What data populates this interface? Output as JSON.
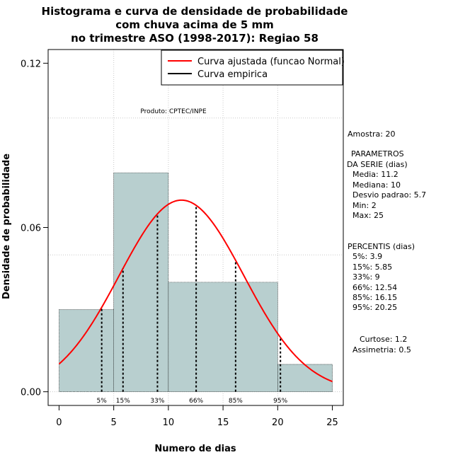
{
  "chart_data": {
    "type": "bar",
    "title_lines": [
      "Histograma e curva de densidade de probabilidade",
      "com chuva acima de 5 mm",
      "no trimestre ASO (1998-2017): Regiao 58"
    ],
    "xlabel": "Numero de dias",
    "ylabel": "Densidade de probabilidade",
    "xlim": [
      -1,
      26
    ],
    "ylim": [
      -0.005,
      0.125
    ],
    "x_ticks": [
      0,
      5,
      10,
      15,
      20,
      25
    ],
    "y_ticks": [
      0.0,
      0.06,
      0.12
    ],
    "y_tick_labels": [
      "0.00",
      "0.06",
      "0.12"
    ],
    "grid": true,
    "bins": [
      {
        "start": 0,
        "end": 5,
        "density": 0.03
      },
      {
        "start": 5,
        "end": 10,
        "density": 0.08
      },
      {
        "start": 10,
        "end": 20,
        "density": 0.04
      },
      {
        "start": 20,
        "end": 25,
        "density": 0.01
      }
    ],
    "normal_curve": {
      "mean": 11.2,
      "sd": 5.7,
      "color": "#ff0000"
    },
    "percentile_lines": [
      {
        "label": "5%",
        "x": 3.9
      },
      {
        "label": "15%",
        "x": 5.85
      },
      {
        "label": "33%",
        "x": 9
      },
      {
        "label": "66%",
        "x": 12.54
      },
      {
        "label": "85%",
        "x": 16.15
      },
      {
        "label": "95%",
        "x": 20.25
      }
    ],
    "legend": {
      "placement": "top-right",
      "entries": [
        {
          "label": "Curva ajustada (funcao Normal)",
          "color": "#ff0000"
        },
        {
          "label": "Curva empirica",
          "color": "#000000"
        }
      ]
    },
    "annotation": "Produto: CPTEC/INPE",
    "bar_color": "#b8cfcf"
  },
  "side_panel": {
    "amostra": "Amostra: 20",
    "params_title_1": "PARAMETROS",
    "params_title_2": "DA SERIE (dias)",
    "media": "Media: 11.2",
    "mediana": "Mediana: 10",
    "desvio": "Desvio padrao: 5.7",
    "min": "Min: 2",
    "max": "Max: 25",
    "percentis_title": "PERCENTIS (dias)",
    "p5": "5%: 3.9",
    "p15": "15%: 5.85",
    "p33": "33%: 9",
    "p66": "66%: 12.54",
    "p85": "85%: 16.15",
    "p95": "95%: 20.25",
    "curtose": "Curtose: 1.2",
    "assimetria": "Assimetria: 0.5"
  }
}
